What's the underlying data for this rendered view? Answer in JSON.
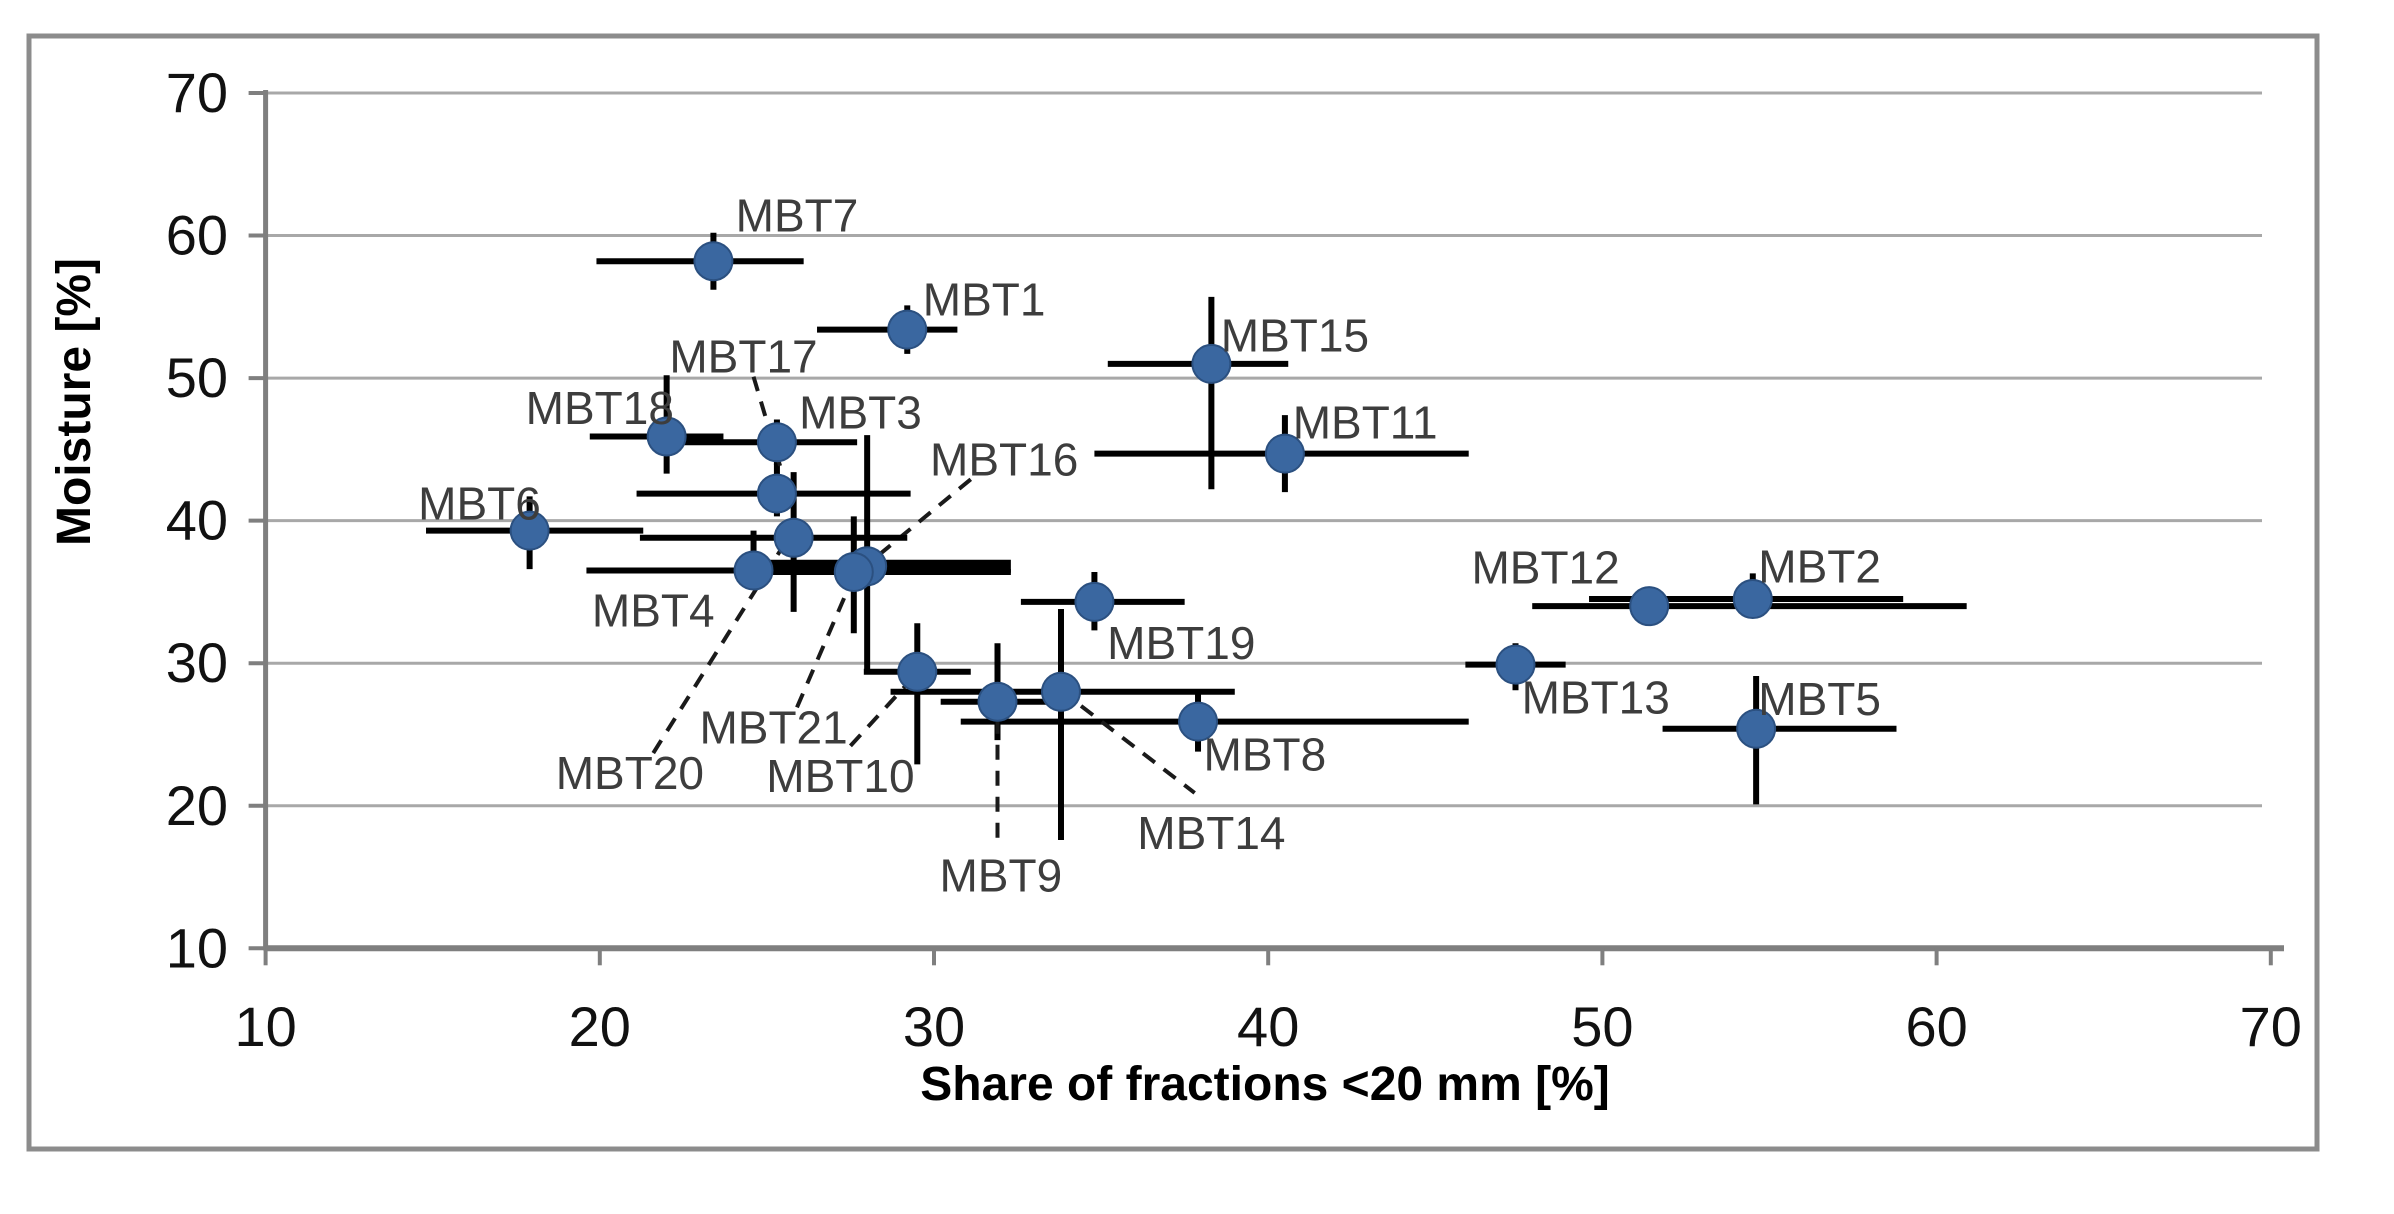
{
  "chart_data": {
    "type": "scatter",
    "title": "",
    "xlabel": "Share of fractions <20 mm [%]",
    "ylabel": "Moisture [%]",
    "xlim": [
      10,
      70
    ],
    "ylim": [
      10,
      70
    ],
    "xticks": [
      10,
      20,
      30,
      40,
      50,
      60,
      70
    ],
    "yticks": [
      10,
      20,
      30,
      40,
      50,
      60,
      70
    ],
    "xtick_labels": [
      "10",
      "20",
      "30",
      "40",
      "50",
      "60",
      "70"
    ],
    "ytick_labels": [
      "10",
      "20",
      "30",
      "40",
      "50",
      "60",
      "70"
    ],
    "grid": "horizontal",
    "legend": "none",
    "points": [
      {
        "label": "MBT1",
        "x": 29.2,
        "y": 53.4,
        "xbar": [
          26.5,
          30.7
        ],
        "ybar": [
          51.7,
          55.1
        ],
        "label_pos": [
          31.5,
          55.5
        ],
        "leader": null,
        "thick_xbar": false
      },
      {
        "label": "MBT2",
        "x": 54.5,
        "y": 34.5,
        "xbar": [
          49.6,
          59.0
        ],
        "ybar": [
          33.2,
          36.3
        ],
        "label_pos": [
          56.5,
          36.8
        ],
        "leader": null,
        "thick_xbar": false
      },
      {
        "label": "MBT3",
        "x": 25.3,
        "y": 45.5,
        "xbar": [
          22.0,
          27.7
        ],
        "ybar": [
          43.9,
          47.1
        ],
        "label_pos": [
          27.8,
          47.6
        ],
        "leader": null,
        "thick_xbar": false
      },
      {
        "label": "MBT4",
        "x": 24.6,
        "y": 36.5,
        "xbar": [
          19.6,
          26.1
        ],
        "ybar": [
          35.3,
          39.3
        ],
        "label_pos": [
          21.6,
          33.7
        ],
        "leader": null,
        "thick_xbar": false
      },
      {
        "label": "MBT5",
        "x": 54.6,
        "y": 25.4,
        "xbar": [
          51.8,
          58.8
        ],
        "ybar": [
          20.1,
          29.1
        ],
        "label_pos": [
          56.5,
          27.5
        ],
        "leader": null,
        "thick_xbar": false
      },
      {
        "label": "MBT6",
        "x": 17.9,
        "y": 39.3,
        "xbar": [
          14.8,
          21.3
        ],
        "ybar": [
          36.6,
          41.7
        ],
        "label_pos": [
          16.4,
          41.2
        ],
        "leader": null,
        "thick_xbar": false
      },
      {
        "label": "MBT7",
        "x": 23.4,
        "y": 58.2,
        "xbar": [
          19.9,
          26.1
        ],
        "ybar": [
          56.2,
          60.2
        ],
        "label_pos": [
          25.9,
          61.4
        ],
        "leader": null,
        "thick_xbar": false
      },
      {
        "label": "MBT8",
        "x": 37.9,
        "y": 25.9,
        "xbar": [
          30.8,
          46.0
        ],
        "ybar": [
          23.8,
          27.8
        ],
        "label_pos": [
          39.9,
          23.6
        ],
        "leader": null,
        "thick_xbar": false
      },
      {
        "label": "MBT9",
        "x": 31.9,
        "y": 27.3,
        "xbar": [
          30.2,
          33.8
        ],
        "ybar": [
          24.6,
          31.4
        ],
        "label_pos": [
          32.0,
          15.1
        ],
        "leader": [
          [
            31.9,
            26.1
          ],
          [
            31.9,
            17.4
          ]
        ],
        "thick_xbar": false
      },
      {
        "label": "MBT10",
        "x": 29.5,
        "y": 29.4,
        "xbar": [
          27.9,
          31.1
        ],
        "ybar": [
          22.9,
          32.8
        ],
        "label_pos": [
          27.2,
          22.1
        ],
        "leader": [
          [
            27.5,
            24.2
          ],
          [
            29.3,
            28.8
          ]
        ],
        "thick_xbar": false
      },
      {
        "label": "MBT11",
        "x": 40.5,
        "y": 44.7,
        "xbar": [
          34.8,
          46.0
        ],
        "ybar": [
          42.0,
          47.4
        ],
        "label_pos": [
          42.9,
          46.9
        ],
        "leader": null,
        "thick_xbar": false
      },
      {
        "label": "MBT12",
        "x": 51.4,
        "y": 34.0,
        "xbar": [
          47.9,
          60.9
        ],
        "ybar": [
          33.1,
          35.2
        ],
        "label_pos": [
          48.3,
          36.7
        ],
        "leader": null,
        "thick_xbar": false
      },
      {
        "label": "MBT13",
        "x": 47.4,
        "y": 29.9,
        "xbar": [
          45.9,
          48.9
        ],
        "ybar": [
          28.1,
          31.4
        ],
        "label_pos": [
          49.8,
          27.6
        ],
        "leader": null,
        "thick_xbar": false
      },
      {
        "label": "MBT14",
        "x": 33.8,
        "y": 28.0,
        "xbar": [
          28.7,
          39.0
        ],
        "ybar": [
          17.6,
          33.8
        ],
        "label_pos": [
          38.3,
          18.1
        ],
        "leader": [
          [
            34.4,
            27.0
          ],
          [
            37.8,
            20.9
          ]
        ],
        "thick_xbar": false
      },
      {
        "label": "MBT15",
        "x": 38.3,
        "y": 51.0,
        "xbar": [
          35.2,
          40.6
        ],
        "ybar": [
          42.2,
          55.7
        ],
        "label_pos": [
          40.8,
          53.0
        ],
        "leader": null,
        "thick_xbar": false
      },
      {
        "label": "MBT16",
        "x": 28.0,
        "y": 36.8,
        "xbar": [
          24.2,
          32.3
        ],
        "ybar": [
          29.5,
          46.0
        ],
        "label_pos": [
          32.1,
          44.3
        ],
        "leader": [
          [
            31.1,
            42.9
          ],
          [
            28.3,
            37.5
          ]
        ],
        "thick_xbar": true
      },
      {
        "label": "MBT17",
        "x": 25.3,
        "y": 41.9,
        "xbar": [
          21.1,
          29.3
        ],
        "ybar": [
          40.3,
          44.0
        ],
        "label_pos": [
          24.3,
          51.5
        ],
        "leader": [
          [
            24.6,
            50.1
          ],
          [
            25.4,
            43.8
          ]
        ],
        "thick_xbar": false
      },
      {
        "label": "MBT18",
        "x": 22.0,
        "y": 45.9,
        "xbar": [
          19.7,
          23.7
        ],
        "ybar": [
          43.3,
          50.2
        ],
        "label_pos": [
          20.0,
          47.9
        ],
        "leader": null,
        "thick_xbar": false
      },
      {
        "label": "MBT19",
        "x": 34.8,
        "y": 34.3,
        "xbar": [
          32.6,
          37.5
        ],
        "ybar": [
          32.3,
          36.4
        ],
        "label_pos": [
          37.4,
          31.4
        ],
        "leader": null,
        "thick_xbar": false
      },
      {
        "label": "MBT20",
        "x": 25.8,
        "y": 38.8,
        "xbar": [
          21.2,
          29.2
        ],
        "ybar": [
          33.6,
          43.4
        ],
        "label_pos": [
          20.9,
          22.3
        ],
        "leader": [
          [
            21.6,
            23.7
          ],
          [
            25.4,
            37.9
          ]
        ],
        "thick_xbar": false
      },
      {
        "label": "MBT21",
        "x": 27.6,
        "y": 36.4,
        "xbar": [
          24.5,
          32.3
        ],
        "ybar": [
          32.1,
          40.3
        ],
        "label_pos": [
          25.2,
          25.5
        ],
        "leader": [
          [
            25.9,
            26.9
          ],
          [
            27.5,
            35.6
          ]
        ],
        "thick_xbar": false
      }
    ],
    "colors": {
      "point_fill": "#3a67a0",
      "point_stroke": "#2b5080",
      "error_bar": "#000000",
      "leader_line": "#1a1a1a",
      "gridline": "#a8a8a8",
      "axis_line": "#7f7f7f",
      "frame": "#8c8c8c",
      "point_label": "#3d3d3d",
      "tick_label": "#111111",
      "axis_title": "#000000",
      "background": "#ffffff"
    }
  }
}
